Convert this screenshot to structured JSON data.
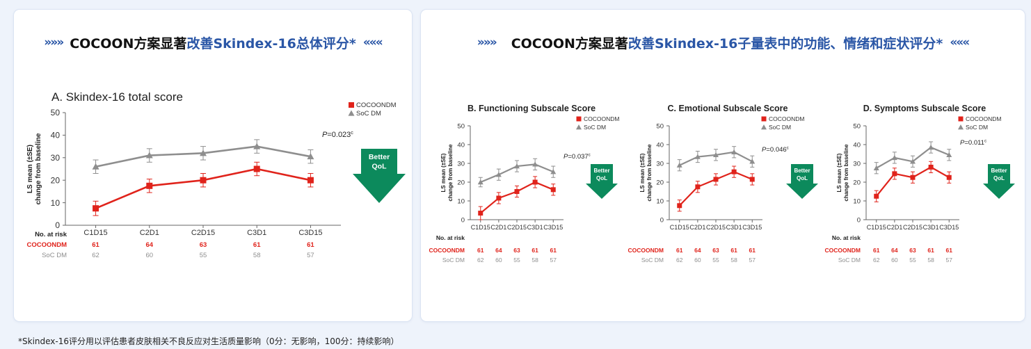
{
  "left_banner": {
    "arrows_left": "»»»",
    "title_black": "COCOON方案显著",
    "title_blue": "改善Skindex-16总体评分*",
    "arrows_right": "«««"
  },
  "right_banner": {
    "arrows_left": "»»»",
    "title_black": "COCOON方案显著",
    "title_blue": "改善Skindex-16子量表中的功能、情绪和症状评分*",
    "arrows_right": "«««"
  },
  "footnote": "*Skindex-16评分用以评估患者皮肤相关不良反应对生活质量影响（0分：无影响，100分：持续影响）",
  "colors": {
    "cocoon": "#e0231b",
    "soc": "#8e8e8e",
    "better": "#0c8a5c",
    "accent": "#2a56a6"
  },
  "chart_data": [
    {
      "type": "line",
      "title": "A. Skindex-16 total score",
      "xlabel": "",
      "ylabel": [
        "LS mean (±SE)",
        "change from baseline"
      ],
      "categories": [
        "C1D15",
        "C2D1",
        "C2D15",
        "C3D1",
        "C3D15"
      ],
      "ylim": [
        0,
        50
      ],
      "yticks": [
        0,
        10,
        20,
        30,
        40,
        50
      ],
      "series": [
        {
          "name": "COCOONDM",
          "marker": "square",
          "values": [
            7.5,
            17.5,
            20,
            25,
            20
          ],
          "se": [
            3.2,
            3.0,
            3.0,
            3.0,
            3.0
          ]
        },
        {
          "name": "SoC DM",
          "marker": "triangle",
          "values": [
            26,
            31,
            32,
            35,
            30.5
          ],
          "se": [
            3.0,
            3.0,
            3.0,
            3.0,
            3.0
          ]
        }
      ],
      "legend": "top-right",
      "pvalue": {
        "prefix": "P",
        "text": "=0.023",
        "sup": "c"
      },
      "badge": [
        "Better",
        "QoL"
      ],
      "at_risk": {
        "label": "No. at risk",
        "rows": [
          {
            "name": "COCOONDM",
            "values": [
              61,
              64,
              63,
              61,
              61
            ]
          },
          {
            "name": "SoC DM",
            "values": [
              62,
              60,
              55,
              58,
              57
            ]
          }
        ]
      }
    },
    {
      "type": "line",
      "title": "B. Functioning Subscale Score",
      "xlabel": "",
      "ylabel": [
        "LS mean (±SE)",
        "change from baseline"
      ],
      "categories": [
        "C1D15",
        "C2D1",
        "C2D15",
        "C3D1",
        "C3D15"
      ],
      "ylim": [
        0,
        50
      ],
      "yticks": [
        0,
        10,
        20,
        30,
        40,
        50
      ],
      "series": [
        {
          "name": "COCOONDM",
          "marker": "square",
          "values": [
            3.5,
            11.5,
            15,
            20,
            16
          ],
          "se": [
            3.5,
            3.0,
            3.0,
            3.0,
            3.0
          ]
        },
        {
          "name": "SoC DM",
          "marker": "triangle",
          "values": [
            20,
            24,
            28.5,
            29.5,
            25.5
          ],
          "se": [
            2.5,
            3.0,
            3.0,
            3.0,
            3.0
          ]
        }
      ],
      "legend": "top-right",
      "pvalue": {
        "prefix": "P",
        "text": "=0.037",
        "sup": "c"
      },
      "badge": [
        "Better",
        "QoL"
      ],
      "at_risk": {
        "label": "No. at risk",
        "rows": [
          {
            "name": "COCOONDM",
            "values": [
              61,
              64,
              63,
              61,
              61
            ]
          },
          {
            "name": "SoC DM",
            "values": [
              62,
              60,
              55,
              58,
              57
            ]
          }
        ]
      }
    },
    {
      "type": "line",
      "title": "C. Emotional Subscale Score",
      "xlabel": "",
      "ylabel": [
        "LS mean (±SE)",
        "change from baseline"
      ],
      "categories": [
        "C1D15",
        "C2D1",
        "C2D15",
        "C3D1",
        "C3D15"
      ],
      "ylim": [
        0,
        50
      ],
      "yticks": [
        0,
        10,
        20,
        30,
        40,
        50
      ],
      "series": [
        {
          "name": "COCOONDM",
          "marker": "square",
          "values": [
            7.5,
            17.5,
            21.5,
            25.5,
            21.5
          ],
          "se": [
            3.0,
            3.0,
            3.0,
            3.0,
            3.0
          ]
        },
        {
          "name": "SoC DM",
          "marker": "triangle",
          "values": [
            29,
            33.5,
            34.5,
            36,
            31
          ],
          "se": [
            3.0,
            3.0,
            3.0,
            3.0,
            3.0
          ]
        }
      ],
      "legend": "top-right",
      "pvalue": {
        "prefix": "P",
        "text": "=0.046",
        "sup": "c"
      },
      "badge": [
        "Better",
        "QoL"
      ],
      "at_risk": {
        "label": "No. at risk",
        "rows": [
          {
            "name": "COCOONDM",
            "values": [
              61,
              64,
              63,
              61,
              61
            ]
          },
          {
            "name": "SoC DM",
            "values": [
              62,
              60,
              55,
              58,
              57
            ]
          }
        ]
      }
    },
    {
      "type": "line",
      "title": "D. Symptoms Subscale Score",
      "xlabel": "",
      "ylabel": [
        "LS mean (±SE)",
        "change from baseline"
      ],
      "categories": [
        "C1D15",
        "C2D1",
        "C2D15",
        "C3D1",
        "C3D15"
      ],
      "ylim": [
        0,
        50
      ],
      "yticks": [
        0,
        10,
        20,
        30,
        40,
        50
      ],
      "series": [
        {
          "name": "COCOONDM",
          "marker": "square",
          "values": [
            12.5,
            24.5,
            22.5,
            28,
            22.5
          ],
          "se": [
            3.0,
            3.0,
            3.0,
            3.0,
            3.0
          ]
        },
        {
          "name": "SoC DM",
          "marker": "triangle",
          "values": [
            27.5,
            33,
            31,
            38.5,
            34.5
          ],
          "se": [
            3.0,
            3.0,
            3.0,
            3.0,
            3.0
          ]
        }
      ],
      "legend": "top-right",
      "pvalue": {
        "prefix": "P",
        "text": "=0.011",
        "sup": "c"
      },
      "badge": [
        "Better",
        "QoL"
      ],
      "at_risk": {
        "label": "No. at risk",
        "rows": [
          {
            "name": "COCOONDM",
            "values": [
              61,
              64,
              63,
              61,
              61
            ]
          },
          {
            "name": "SoC DM",
            "values": [
              62,
              60,
              55,
              58,
              57
            ]
          }
        ]
      }
    }
  ]
}
